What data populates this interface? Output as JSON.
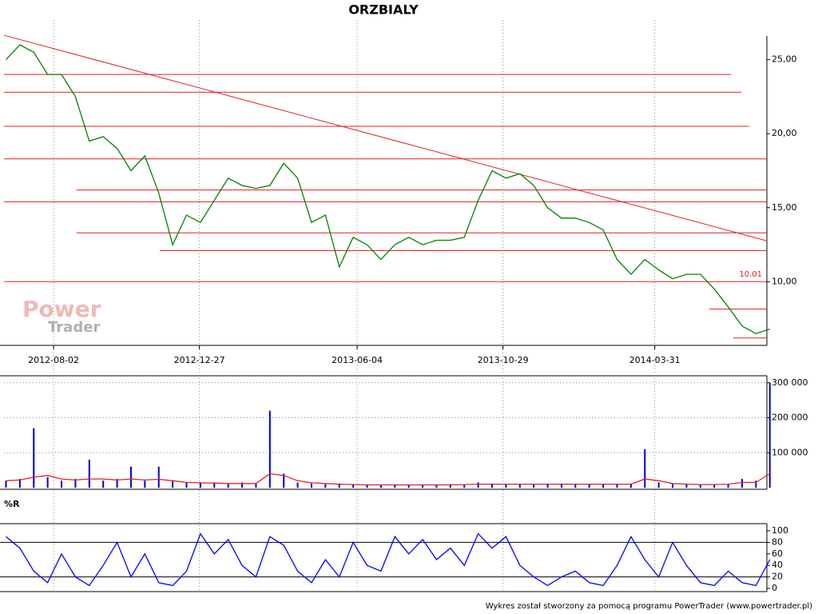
{
  "chart_data": [
    {
      "type": "line",
      "title": "ORZBIALY",
      "watermark": [
        "Power",
        "Trader"
      ],
      "xlim": [
        "2012-06-13",
        "2014-07-22"
      ],
      "xticks": [
        "2012-08-02",
        "2012-12-27",
        "2013-06-04",
        "2013-10-29",
        "2014-03-31"
      ],
      "ylim": [
        5.7,
        26.6
      ],
      "yticks": [
        {
          "value": 10,
          "label": "10,00"
        },
        {
          "value": 15,
          "label": "15,00"
        },
        {
          "value": 20,
          "label": "20,00"
        },
        {
          "value": 25,
          "label": "25,00"
        }
      ],
      "x": [
        "2012-06-15",
        "2012-06-29",
        "2012-07-13",
        "2012-07-27",
        "2012-08-10",
        "2012-08-24",
        "2012-09-07",
        "2012-09-21",
        "2012-10-05",
        "2012-10-19",
        "2012-11-02",
        "2012-11-16",
        "2012-11-30",
        "2012-12-14",
        "2012-12-28",
        "2013-01-11",
        "2013-01-25",
        "2013-02-08",
        "2013-02-22",
        "2013-03-08",
        "2013-03-22",
        "2013-04-05",
        "2013-04-19",
        "2013-05-03",
        "2013-05-17",
        "2013-05-31",
        "2013-06-14",
        "2013-06-28",
        "2013-07-12",
        "2013-07-26",
        "2013-08-09",
        "2013-08-23",
        "2013-09-06",
        "2013-09-20",
        "2013-10-04",
        "2013-10-18",
        "2013-11-01",
        "2013-11-15",
        "2013-11-29",
        "2013-12-13",
        "2013-12-27",
        "2014-01-10",
        "2014-01-24",
        "2014-02-07",
        "2014-02-21",
        "2014-03-07",
        "2014-03-21",
        "2014-04-04",
        "2014-04-18",
        "2014-05-02",
        "2014-05-16",
        "2014-05-30",
        "2014-06-13",
        "2014-06-27",
        "2014-07-11",
        "2014-07-25"
      ],
      "series": [
        {
          "color": "#008000",
          "values": [
            25,
            26,
            25.5,
            24,
            24,
            22.5,
            19.5,
            19.8,
            19,
            17.5,
            18.5,
            16,
            12.5,
            14.5,
            14,
            15.5,
            17,
            16.5,
            16.3,
            16.5,
            18,
            17,
            14,
            14.5,
            11,
            13,
            12.5,
            11.5,
            12.5,
            13,
            12.5,
            12.8,
            12.8,
            13,
            15.5,
            17.5,
            17,
            17.3,
            16.5,
            15,
            14.3,
            14.3,
            14,
            13.5,
            11.5,
            10.5,
            11.5,
            10.8,
            10.2,
            10.5,
            10.5,
            9.5,
            8.3,
            7,
            6.5,
            6.8
          ]
        }
      ],
      "line_color": "#e02020",
      "hlines": [
        {
          "value": 24.0,
          "x": [
            "2012-06-13",
            "2014-06-16"
          ]
        },
        {
          "value": 22.8,
          "x": [
            "2012-06-13",
            "2014-06-26"
          ]
        },
        {
          "value": 20.5,
          "x": [
            "2012-06-13",
            "2014-07-04"
          ]
        },
        {
          "value": 18.3,
          "x": [
            "2012-06-13",
            "2014-07-22"
          ]
        },
        {
          "value": 16.2,
          "x": [
            "2012-08-25",
            "2014-07-22"
          ]
        },
        {
          "value": 15.4,
          "x": [
            "2012-06-13",
            "2014-07-22"
          ]
        },
        {
          "value": 13.3,
          "x": [
            "2012-08-25",
            "2014-07-22"
          ]
        },
        {
          "value": 12.1,
          "x": [
            "2012-11-17",
            "2014-07-22"
          ]
        },
        {
          "value": 10.01,
          "label": "10,01",
          "x": [
            "2012-06-13",
            "2014-07-22"
          ]
        },
        {
          "value": 8.15,
          "x": [
            "2014-05-25",
            "2014-07-22"
          ]
        },
        {
          "value": 6.2,
          "x": [
            "2014-06-18",
            "2014-07-22"
          ]
        }
      ],
      "trendline": {
        "x": [
          "2012-06-13",
          "2014-07-22"
        ],
        "values": [
          26.65,
          12.76
        ]
      }
    },
    {
      "type": "bar",
      "xlim": [
        "2012-06-13",
        "2014-07-22"
      ],
      "ylim": [
        0,
        320000
      ],
      "yticks": [
        {
          "value": 100000,
          "label": "100 000"
        },
        {
          "value": 200000,
          "label": "200 000"
        },
        {
          "value": 300000,
          "label": "300 000"
        }
      ],
      "x": [
        "2012-06-15",
        "2012-06-29",
        "2012-07-13",
        "2012-07-27",
        "2012-08-10",
        "2012-08-24",
        "2012-09-07",
        "2012-09-21",
        "2012-10-05",
        "2012-10-19",
        "2012-11-02",
        "2012-11-16",
        "2012-11-30",
        "2012-12-14",
        "2012-12-28",
        "2013-01-11",
        "2013-01-25",
        "2013-02-08",
        "2013-02-22",
        "2013-03-08",
        "2013-03-22",
        "2013-04-05",
        "2013-04-19",
        "2013-05-03",
        "2013-05-17",
        "2013-05-31",
        "2013-06-14",
        "2013-06-28",
        "2013-07-12",
        "2013-07-26",
        "2013-08-09",
        "2013-08-23",
        "2013-09-06",
        "2013-09-20",
        "2013-10-04",
        "2013-10-18",
        "2013-11-01",
        "2013-11-15",
        "2013-11-29",
        "2013-12-13",
        "2013-12-27",
        "2014-01-10",
        "2014-01-24",
        "2014-02-07",
        "2014-02-21",
        "2014-03-07",
        "2014-03-21",
        "2014-04-04",
        "2014-04-18",
        "2014-05-02",
        "2014-05-16",
        "2014-05-30",
        "2014-06-13",
        "2014-06-27",
        "2014-07-11",
        "2014-07-25"
      ],
      "series": [
        {
          "type": "bar",
          "color": "#0000cc",
          "values": [
            20000,
            25000,
            170000,
            30000,
            20000,
            25000,
            80000,
            20000,
            25000,
            60000,
            20000,
            60000,
            20000,
            15000,
            15000,
            15000,
            12000,
            15000,
            12000,
            220000,
            40000,
            15000,
            12000,
            10000,
            12000,
            8000,
            8000,
            8000,
            8000,
            8000,
            8000,
            8000,
            10000,
            10000,
            15000,
            12000,
            10000,
            10000,
            10000,
            10000,
            12000,
            10000,
            10000,
            10000,
            10000,
            12000,
            110000,
            15000,
            10000,
            10000,
            8000,
            10000,
            10000,
            25000,
            20000,
            300000
          ]
        },
        {
          "type": "line",
          "color": "#e02020",
          "values": [
            20000,
            22000,
            30000,
            35000,
            25000,
            22000,
            25000,
            25000,
            22000,
            25000,
            22000,
            24000,
            20000,
            15000,
            14000,
            13000,
            12000,
            12000,
            12000,
            40000,
            35000,
            20000,
            14000,
            12000,
            10000,
            9000,
            8000,
            8000,
            8000,
            8000,
            8000,
            8000,
            8000,
            9000,
            10000,
            10000,
            10000,
            10000,
            10000,
            10000,
            10000,
            10000,
            10000,
            10000,
            10000,
            10000,
            25000,
            20000,
            12000,
            10000,
            9000,
            9000,
            10000,
            15000,
            15000,
            40000
          ]
        }
      ]
    },
    {
      "type": "line",
      "title": "%R",
      "xlim": [
        "2012-06-13",
        "2014-07-22"
      ],
      "ylim": [
        0,
        100
      ],
      "yticks": [
        0,
        20,
        40,
        60,
        80,
        100
      ],
      "levels": [
        20,
        80
      ],
      "x": [
        "2012-06-15",
        "2012-06-29",
        "2012-07-13",
        "2012-07-27",
        "2012-08-10",
        "2012-08-24",
        "2012-09-07",
        "2012-09-21",
        "2012-10-05",
        "2012-10-19",
        "2012-11-02",
        "2012-11-16",
        "2012-11-30",
        "2012-12-14",
        "2012-12-28",
        "2013-01-11",
        "2013-01-25",
        "2013-02-08",
        "2013-02-22",
        "2013-03-08",
        "2013-03-22",
        "2013-04-05",
        "2013-04-19",
        "2013-05-03",
        "2013-05-17",
        "2013-05-31",
        "2013-06-14",
        "2013-06-28",
        "2013-07-12",
        "2013-07-26",
        "2013-08-09",
        "2013-08-23",
        "2013-09-06",
        "2013-09-20",
        "2013-10-04",
        "2013-10-18",
        "2013-11-01",
        "2013-11-15",
        "2013-11-29",
        "2013-12-13",
        "2013-12-27",
        "2014-01-10",
        "2014-01-24",
        "2014-02-07",
        "2014-02-21",
        "2014-03-07",
        "2014-03-21",
        "2014-04-04",
        "2014-04-18",
        "2014-05-02",
        "2014-05-16",
        "2014-05-30",
        "2014-06-13",
        "2014-06-27",
        "2014-07-11",
        "2014-07-25"
      ],
      "series": [
        {
          "color": "#0000ff",
          "values": [
            90,
            70,
            30,
            10,
            60,
            20,
            5,
            40,
            80,
            20,
            60,
            10,
            5,
            30,
            95,
            60,
            85,
            40,
            20,
            90,
            75,
            30,
            10,
            50,
            20,
            80,
            40,
            30,
            90,
            60,
            85,
            50,
            70,
            40,
            95,
            70,
            90,
            40,
            20,
            5,
            20,
            30,
            10,
            5,
            40,
            90,
            50,
            20,
            80,
            40,
            10,
            5,
            30,
            10,
            5,
            50
          ]
        }
      ]
    }
  ],
  "footer": "Wykres został stworzony za pomocą programu PowerTrader (www.powertrader.pl)"
}
